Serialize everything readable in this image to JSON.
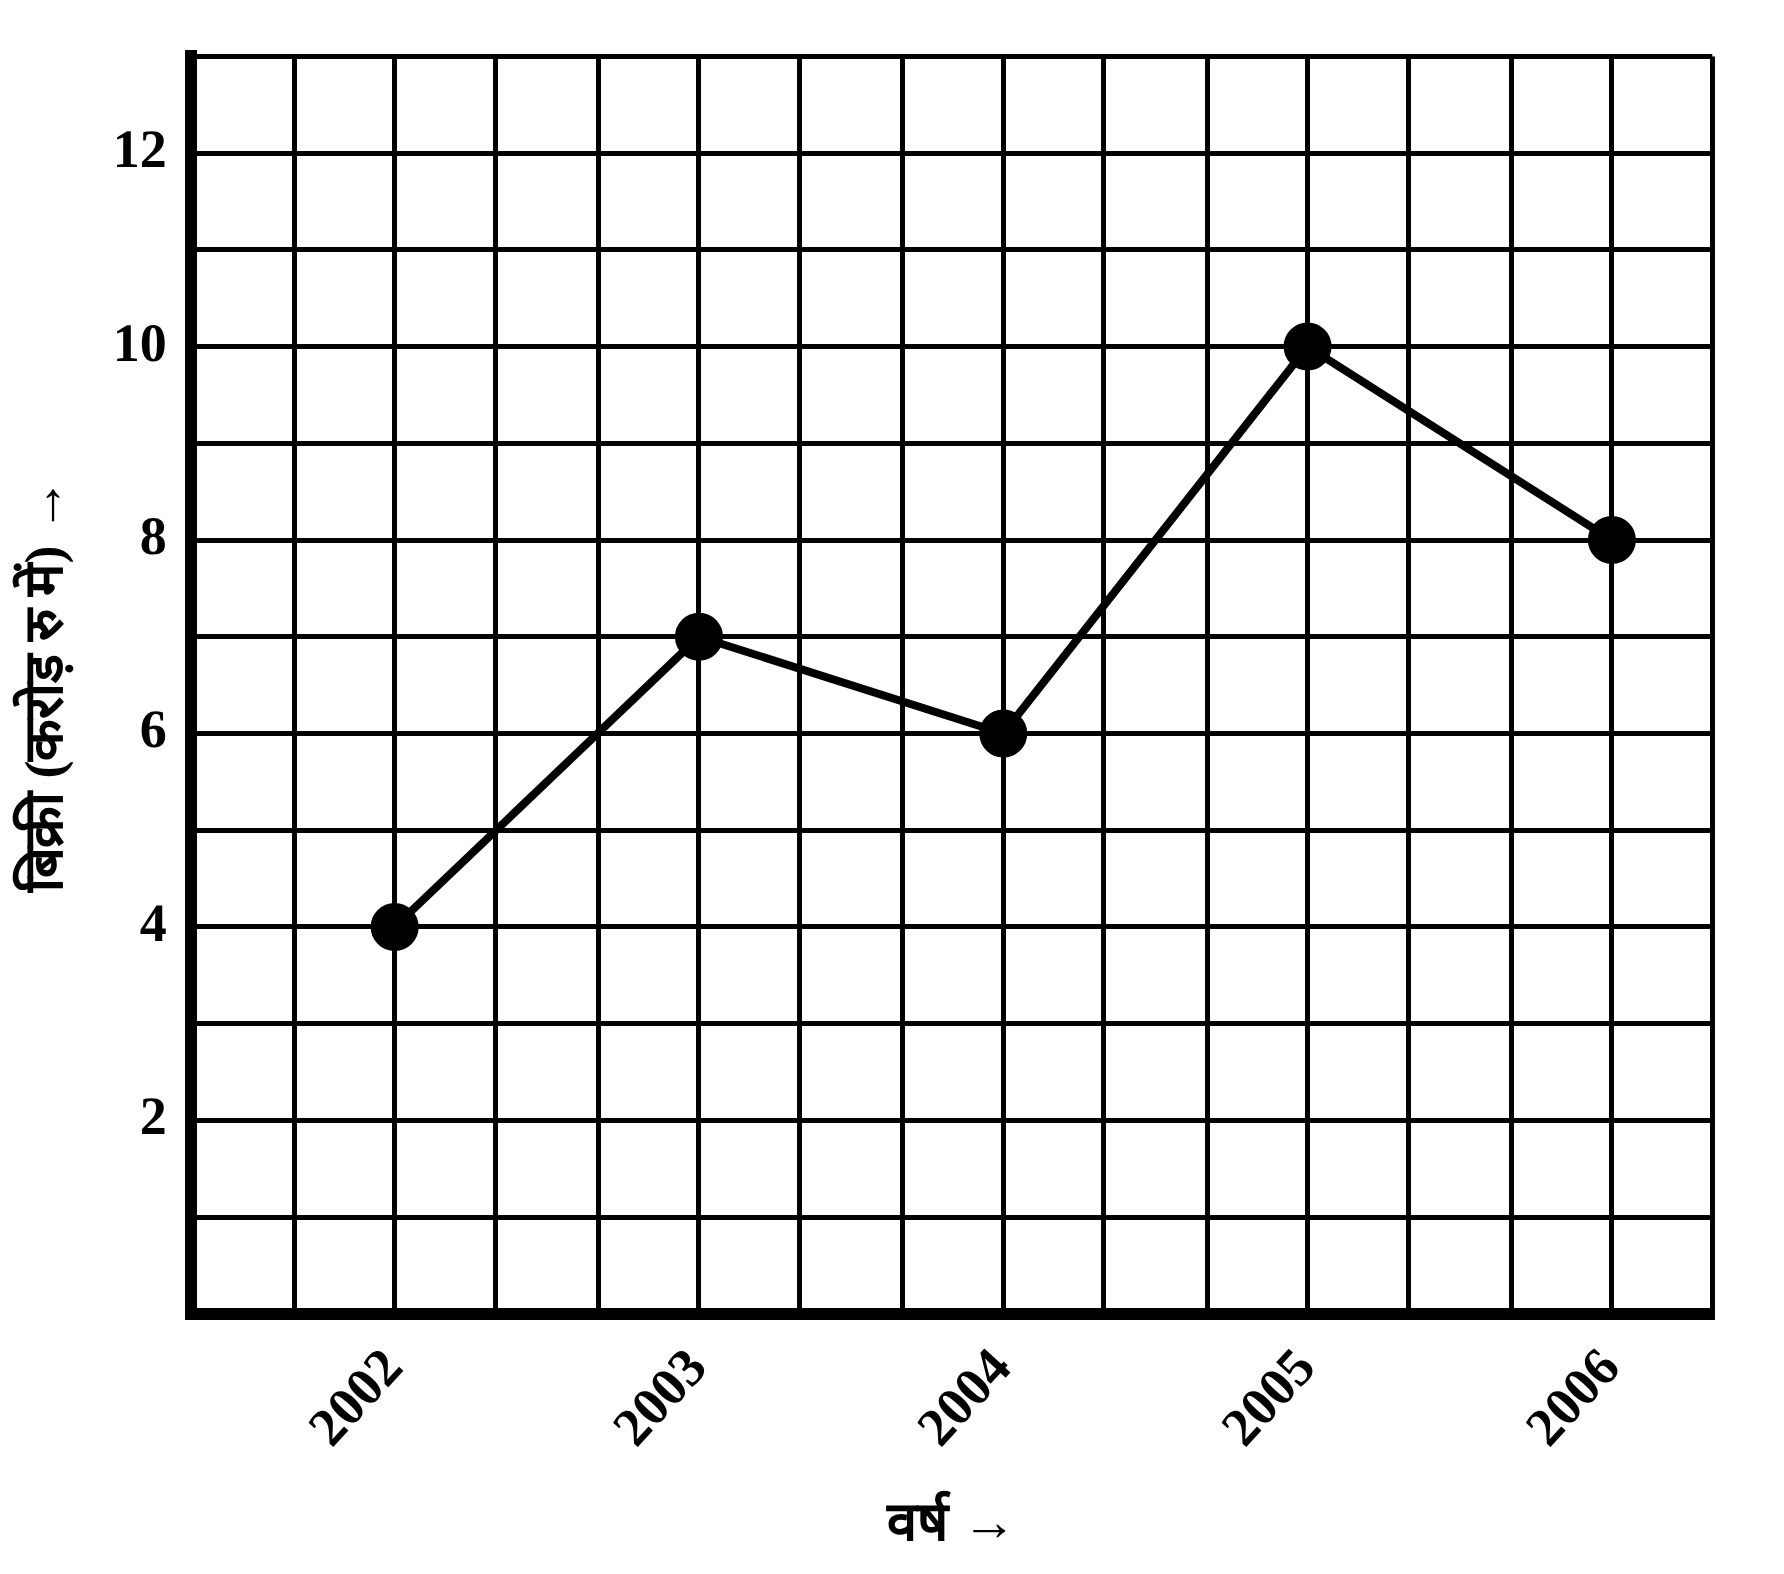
{
  "chart_data": {
    "type": "line",
    "xlabel": "वर्ष →",
    "ylabel": "बिक्री (करोड़ रु में) →",
    "x": [
      2002,
      2003,
      2004,
      2005,
      2006
    ],
    "series": [
      {
        "color": "#000000",
        "values": [
          4,
          7,
          6,
          10,
          8
        ]
      }
    ],
    "xlim": [
      2001.33,
      2006.33
    ],
    "xticks": [
      {
        "value": 2001.33,
        "label": null
      },
      {
        "value": 2001.67,
        "label": null
      },
      2002,
      {
        "value": 2002.33,
        "label": null
      },
      {
        "value": 2002.67,
        "label": null
      },
      2003,
      {
        "value": 2003.33,
        "label": null
      },
      {
        "value": 2003.67,
        "label": null
      },
      2004,
      {
        "value": 2004.33,
        "label": null
      },
      {
        "value": 2004.67,
        "label": null
      },
      2005,
      {
        "value": 2005.33,
        "label": null
      },
      {
        "value": 2005.67,
        "label": null
      },
      2006,
      {
        "value": 2006.33,
        "label": null
      }
    ],
    "ylim": [
      0,
      13
    ],
    "yticks": [
      {
        "value": 1,
        "label": null
      },
      2,
      {
        "value": 3,
        "label": null
      },
      4,
      {
        "value": 5,
        "label": null
      },
      6,
      {
        "value": 7,
        "label": null
      },
      8,
      {
        "value": 9,
        "label": null
      },
      10,
      {
        "value": 11,
        "label": null
      },
      12,
      {
        "value": 13,
        "label": null
      }
    ],
    "grid": true,
    "marker": "circle",
    "line_style": "solid",
    "legend": false
  }
}
